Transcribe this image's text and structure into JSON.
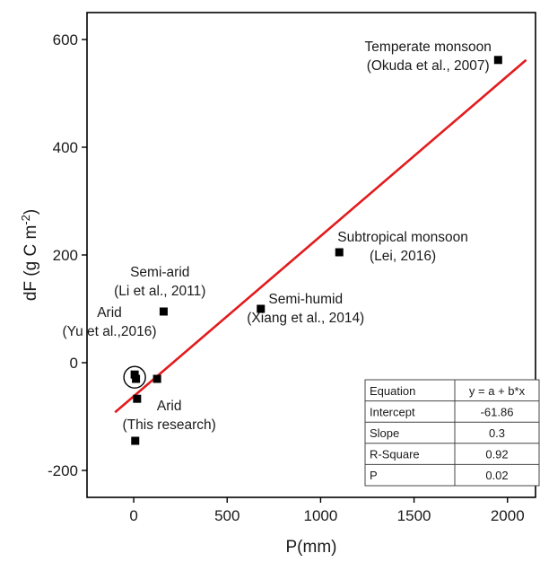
{
  "chart_data": {
    "type": "scatter",
    "xlabel": "P(mm)",
    "ylabel": "dF (g C m",
    "ylabel_sup": "-2",
    "ylabel_close": ")",
    "xlim": [
      -250,
      2150
    ],
    "ylim": [
      -250,
      650
    ],
    "xticks": [
      0,
      500,
      1000,
      1500,
      2000
    ],
    "yticks": [
      -200,
      0,
      200,
      400,
      600
    ],
    "grid": false,
    "marker_color": "#000000",
    "fit_color": "#e31a1c",
    "points": [
      {
        "x": 1950,
        "y": 562
      },
      {
        "x": 1100,
        "y": 205
      },
      {
        "x": 680,
        "y": 100
      },
      {
        "x": 160,
        "y": 95
      },
      {
        "x": 125,
        "y": -30
      },
      {
        "x": 5,
        "y": -22
      },
      {
        "x": 12,
        "y": -30
      },
      {
        "x": 18,
        "y": -67
      },
      {
        "x": 8,
        "y": -145
      }
    ],
    "fit_line": {
      "x": [
        -100,
        2100
      ],
      "y": [
        -92,
        562
      ]
    },
    "highlight": {
      "x": 5,
      "y": -27
    },
    "annotations": [
      {
        "lines": [
          "Temperate monsoon",
          "(Okuda et al., 2007)"
        ],
        "x": 1575,
        "y": 578
      },
      {
        "lines": [
          "Subtropical monsoon",
          "(Lei, 2016)"
        ],
        "x": 1440,
        "y": 225
      },
      {
        "lines": [
          "Semi-humid",
          "(Xiang et al., 2014)"
        ],
        "x": 920,
        "y": 110
      },
      {
        "lines": [
          "Semi-arid",
          "(Li et al., 2011)"
        ],
        "x": 140,
        "y": 160
      },
      {
        "lines": [
          "Arid",
          "(Yu et al.,2016)"
        ],
        "x": -130,
        "y": 85
      },
      {
        "lines": [
          "Arid",
          "(This research)"
        ],
        "x": 190,
        "y": -88
      }
    ],
    "stats_table": [
      [
        "Equation",
        "y = a + b*x"
      ],
      [
        "Intercept",
        "-61.86"
      ],
      [
        "Slope",
        "0.3"
      ],
      [
        "R-Square",
        "0.92"
      ],
      [
        "P",
        "0.02"
      ]
    ]
  }
}
